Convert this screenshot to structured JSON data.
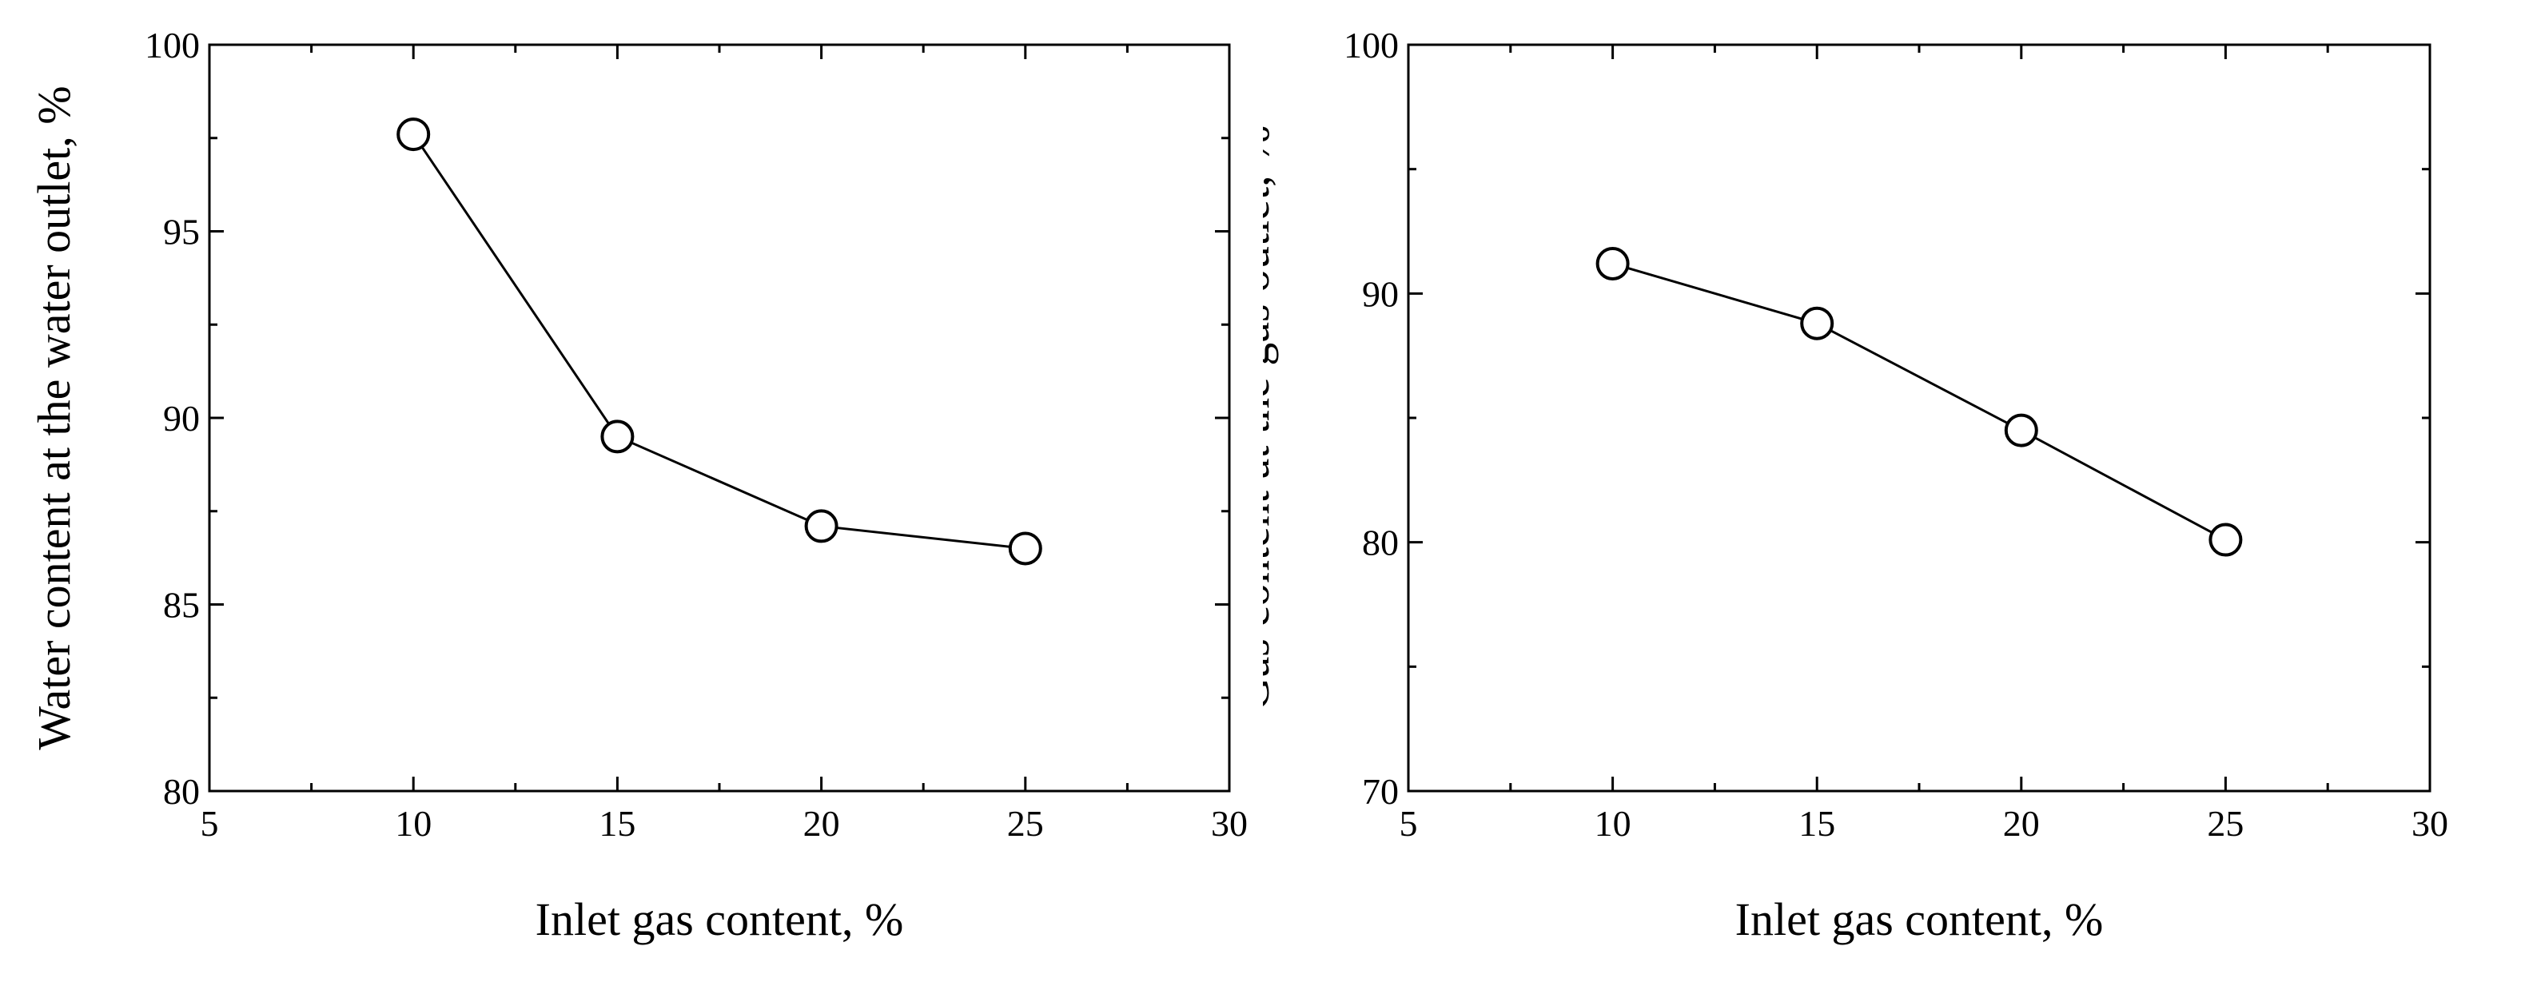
{
  "chart_data": [
    {
      "type": "line",
      "xlabel": "Inlet gas content, %",
      "ylabel": "Water content at the water outlet, %",
      "xlim": [
        5,
        30
      ],
      "ylim": [
        80,
        100
      ],
      "xticks": [
        5,
        10,
        15,
        20,
        25,
        30
      ],
      "yticks": [
        80,
        85,
        90,
        95,
        100
      ],
      "grid": false,
      "marker": "open-circle",
      "series": [
        {
          "x": [
            10,
            15,
            20,
            25
          ],
          "values": [
            97.6,
            89.5,
            87.1,
            86.5
          ]
        }
      ]
    },
    {
      "type": "line",
      "xlabel": "Inlet gas content, %",
      "ylabel": "Gas content at the gas outlet, %",
      "xlim": [
        5,
        30
      ],
      "ylim": [
        70,
        100
      ],
      "xticks": [
        5,
        10,
        15,
        20,
        25,
        30
      ],
      "yticks": [
        70,
        80,
        90,
        100
      ],
      "grid": false,
      "marker": "open-circle",
      "series": [
        {
          "x": [
            10,
            15,
            20,
            25
          ],
          "values": [
            91.2,
            88.8,
            84.5,
            80.1
          ]
        }
      ]
    }
  ],
  "colors": {
    "line": "#000000",
    "marker_fill": "#ffffff",
    "background": "#ffffff"
  }
}
